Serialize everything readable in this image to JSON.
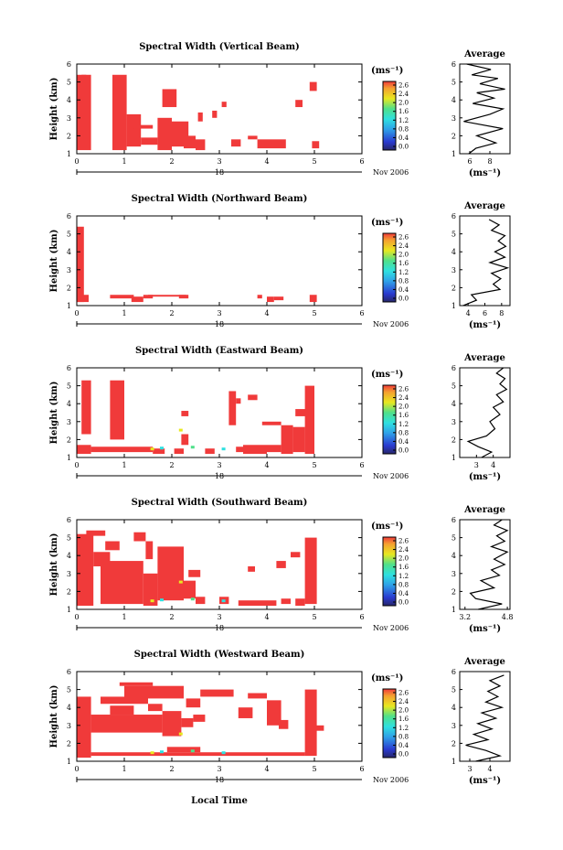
{
  "figure": {
    "colorbar_unit": "(ms⁻¹)",
    "avg_title": "Average",
    "avg_xlabel": "(ms⁻¹)",
    "ylabel": "Height (km)",
    "date_day": "18",
    "date_month": "Nov 2006",
    "xlabel": "Local Time",
    "colorbar_ticks": [
      "2.6",
      "2.4",
      "2.0",
      "1.6",
      "1.2",
      "0.8",
      "0.4",
      "0.0"
    ],
    "colors": {
      "red": "#f03a3a",
      "cyan": "#2fe0e0",
      "yellow": "#e8e820",
      "green": "#4fe08a",
      "blue": "#2a4fd0",
      "navy": "#27276a"
    }
  },
  "chart_data": [
    {
      "type": "heatmap",
      "title": "Spectral Width (Vertical Beam)",
      "xlabel": "",
      "ylabel": "Height (km)",
      "xlim": [
        0,
        6
      ],
      "ylim": [
        1,
        6
      ],
      "x_ticks": [
        "0",
        "1",
        "2",
        "3",
        "4",
        "5",
        "6"
      ],
      "y_ticks": [
        "1",
        "2",
        "3",
        "4",
        "5",
        "6"
      ],
      "colorbar_ticks": [
        "2.6",
        "2.4",
        "2.0",
        "1.6",
        "1.2",
        "0.8",
        "0.4",
        "0.0"
      ],
      "cells": [
        [
          0.0,
          0.3,
          1.2,
          5.4
        ],
        [
          0.75,
          1.05,
          1.2,
          5.4
        ],
        [
          1.05,
          1.35,
          1.4,
          3.2
        ],
        [
          1.35,
          1.7,
          1.5,
          1.9
        ],
        [
          1.7,
          2.0,
          1.2,
          3.0
        ],
        [
          1.8,
          2.1,
          3.6,
          4.6
        ],
        [
          2.0,
          2.35,
          1.4,
          2.8
        ],
        [
          2.25,
          2.5,
          1.3,
          2.0
        ],
        [
          2.5,
          2.7,
          1.2,
          1.8
        ],
        [
          2.55,
          2.65,
          2.8,
          3.3
        ],
        [
          2.85,
          2.95,
          3.0,
          3.4
        ],
        [
          3.05,
          3.15,
          3.6,
          3.9
        ],
        [
          3.25,
          3.45,
          1.4,
          1.8
        ],
        [
          3.8,
          4.4,
          1.3,
          1.8
        ],
        [
          3.6,
          3.8,
          1.8,
          2.0
        ],
        [
          4.95,
          5.1,
          1.3,
          1.7
        ],
        [
          4.6,
          4.75,
          3.6,
          4.0
        ],
        [
          4.9,
          5.05,
          4.5,
          5.0
        ],
        [
          0.1,
          0.2,
          5.0,
          5.4
        ],
        [
          1.2,
          1.6,
          2.4,
          2.6
        ]
      ],
      "avg": {
        "xlim": [
          5,
          10
        ],
        "x_ticks": [
          "6",
          "8"
        ],
        "ylim": [
          1,
          6
        ],
        "profile": [
          [
            5.9,
            1.0
          ],
          [
            6.6,
            1.3
          ],
          [
            8.6,
            1.6
          ],
          [
            6.7,
            2.0
          ],
          [
            9.3,
            2.4
          ],
          [
            5.4,
            2.8
          ],
          [
            8.0,
            3.2
          ],
          [
            9.3,
            3.5
          ],
          [
            6.3,
            3.8
          ],
          [
            8.4,
            4.1
          ],
          [
            6.7,
            4.4
          ],
          [
            9.5,
            4.6
          ],
          [
            7.0,
            4.9
          ],
          [
            8.8,
            5.2
          ],
          [
            6.2,
            5.4
          ],
          [
            8.1,
            5.7
          ],
          [
            5.7,
            6.0
          ]
        ]
      }
    },
    {
      "type": "heatmap",
      "title": "Spectral Width (Northward Beam)",
      "xlabel": "",
      "ylabel": "Height (km)",
      "xlim": [
        0,
        6
      ],
      "ylim": [
        1,
        6
      ],
      "x_ticks": [
        "0",
        "1",
        "2",
        "3",
        "4",
        "5",
        "6"
      ],
      "y_ticks": [
        "1",
        "2",
        "3",
        "4",
        "5",
        "6"
      ],
      "colorbar_ticks": [
        "2.6",
        "2.4",
        "2.0",
        "1.6",
        "1.2",
        "0.8",
        "0.4",
        "0.0"
      ],
      "cells": [
        [
          0.0,
          0.15,
          1.2,
          5.4
        ],
        [
          0.0,
          0.25,
          1.2,
          1.6
        ],
        [
          0.7,
          1.2,
          1.4,
          1.6
        ],
        [
          1.15,
          1.4,
          1.2,
          1.5
        ],
        [
          1.4,
          1.6,
          1.4,
          1.6
        ],
        [
          1.5,
          2.3,
          1.5,
          1.6
        ],
        [
          2.15,
          2.35,
          1.4,
          1.6
        ],
        [
          4.0,
          4.15,
          1.2,
          1.5
        ],
        [
          4.15,
          4.35,
          1.3,
          1.5
        ],
        [
          3.8,
          3.9,
          1.4,
          1.6
        ],
        [
          4.9,
          5.05,
          1.2,
          1.6
        ]
      ],
      "avg": {
        "xlim": [
          3,
          9
        ],
        "x_ticks": [
          "4",
          "6",
          "8"
        ],
        "ylim": [
          1,
          6
        ],
        "profile": [
          [
            3.4,
            1.0
          ],
          [
            5.0,
            1.3
          ],
          [
            4.4,
            1.6
          ],
          [
            7.8,
            1.9
          ],
          [
            7.0,
            2.2
          ],
          [
            7.9,
            2.5
          ],
          [
            6.8,
            2.8
          ],
          [
            8.7,
            3.1
          ],
          [
            6.6,
            3.4
          ],
          [
            8.4,
            3.7
          ],
          [
            7.2,
            4.0
          ],
          [
            8.5,
            4.3
          ],
          [
            7.6,
            4.6
          ],
          [
            8.4,
            4.9
          ],
          [
            6.8,
            5.2
          ],
          [
            7.7,
            5.5
          ],
          [
            6.5,
            5.8
          ]
        ]
      }
    },
    {
      "type": "heatmap",
      "title": "Spectral Width (Eastward Beam)",
      "xlabel": "",
      "ylabel": "Height (km)",
      "xlim": [
        0,
        6
      ],
      "ylim": [
        1,
        6
      ],
      "x_ticks": [
        "0",
        "1",
        "2",
        "3",
        "4",
        "5",
        "6"
      ],
      "y_ticks": [
        "1",
        "2",
        "3",
        "4",
        "5",
        "6"
      ],
      "colorbar_ticks": [
        "2.6",
        "2.4",
        "2.0",
        "1.6",
        "1.2",
        "0.8",
        "0.4",
        "0.0"
      ],
      "cells": [
        [
          0.0,
          0.3,
          1.2,
          1.7
        ],
        [
          0.1,
          0.3,
          2.3,
          5.3
        ],
        [
          0.7,
          1.0,
          2.0,
          5.3
        ],
        [
          0.3,
          1.6,
          1.3,
          1.6
        ],
        [
          1.6,
          1.85,
          1.2,
          1.5
        ],
        [
          2.05,
          2.25,
          1.2,
          1.5
        ],
        [
          2.2,
          2.35,
          1.7,
          2.3
        ],
        [
          2.2,
          2.35,
          3.3,
          3.6
        ],
        [
          2.7,
          2.9,
          1.2,
          1.5
        ],
        [
          3.2,
          3.35,
          2.8,
          4.7
        ],
        [
          3.35,
          3.45,
          4.0,
          4.3
        ],
        [
          3.35,
          3.5,
          1.3,
          1.6
        ],
        [
          3.5,
          4.0,
          1.2,
          1.7
        ],
        [
          3.9,
          4.3,
          2.8,
          3.0
        ],
        [
          4.0,
          4.3,
          1.3,
          1.7
        ],
        [
          4.3,
          4.55,
          1.2,
          2.8
        ],
        [
          4.55,
          4.8,
          1.3,
          2.7
        ],
        [
          4.8,
          5.0,
          1.2,
          5.0
        ],
        [
          4.6,
          5.0,
          3.3,
          3.7
        ],
        [
          3.6,
          3.8,
          4.2,
          4.5
        ]
      ],
      "avg": {
        "xlim": [
          2,
          5
        ],
        "x_ticks": [
          "3",
          "4"
        ],
        "ylim": [
          1,
          6
        ],
        "profile": [
          [
            3.3,
            1.0
          ],
          [
            3.9,
            1.3
          ],
          [
            3.1,
            1.6
          ],
          [
            2.5,
            1.9
          ],
          [
            3.6,
            2.2
          ],
          [
            4.1,
            2.6
          ],
          [
            3.8,
            3.0
          ],
          [
            4.4,
            3.4
          ],
          [
            4.0,
            3.8
          ],
          [
            4.6,
            4.1
          ],
          [
            4.2,
            4.5
          ],
          [
            4.8,
            4.8
          ],
          [
            4.4,
            5.1
          ],
          [
            4.7,
            5.4
          ],
          [
            4.2,
            5.7
          ],
          [
            4.6,
            6.0
          ]
        ]
      }
    },
    {
      "type": "heatmap",
      "title": "Spectral Width (Southward Beam)",
      "xlabel": "",
      "ylabel": "Height (km)",
      "xlim": [
        0,
        6
      ],
      "ylim": [
        1,
        6
      ],
      "x_ticks": [
        "0",
        "1",
        "2",
        "3",
        "4",
        "5",
        "6"
      ],
      "y_ticks": [
        "1",
        "2",
        "3",
        "4",
        "5",
        "6"
      ],
      "colorbar_ticks": [
        "2.6",
        "2.4",
        "2.0",
        "1.6",
        "1.2",
        "0.8",
        "0.4",
        "0.0"
      ],
      "cells": [
        [
          0.0,
          0.35,
          1.2,
          5.2
        ],
        [
          0.35,
          0.7,
          3.4,
          4.2
        ],
        [
          0.5,
          1.4,
          1.3,
          3.7
        ],
        [
          0.6,
          0.9,
          4.3,
          4.8
        ],
        [
          1.4,
          1.7,
          1.2,
          3.0
        ],
        [
          1.45,
          1.6,
          3.8,
          4.8
        ],
        [
          1.7,
          2.25,
          1.5,
          4.5
        ],
        [
          2.25,
          2.5,
          1.6,
          2.6
        ],
        [
          2.35,
          2.6,
          2.8,
          3.2
        ],
        [
          2.5,
          2.7,
          1.3,
          1.7
        ],
        [
          3.0,
          3.2,
          1.3,
          1.7
        ],
        [
          3.4,
          4.2,
          1.2,
          1.5
        ],
        [
          4.3,
          4.5,
          1.3,
          1.6
        ],
        [
          4.6,
          4.8,
          1.2,
          1.6
        ],
        [
          4.8,
          5.05,
          1.3,
          5.0
        ],
        [
          4.5,
          4.7,
          3.9,
          4.2
        ],
        [
          0.2,
          0.6,
          5.1,
          5.4
        ],
        [
          1.2,
          1.45,
          4.8,
          5.3
        ],
        [
          3.6,
          3.75,
          3.1,
          3.4
        ],
        [
          4.2,
          4.4,
          3.3,
          3.7
        ]
      ],
      "avg": {
        "xlim": [
          3.0,
          4.9
        ],
        "x_ticks": [
          "3.2",
          "4.8"
        ],
        "ylim": [
          1,
          6
        ],
        "profile": [
          [
            3.7,
            1.0
          ],
          [
            4.6,
            1.3
          ],
          [
            3.6,
            1.6
          ],
          [
            3.4,
            1.9
          ],
          [
            4.3,
            2.2
          ],
          [
            3.8,
            2.6
          ],
          [
            4.5,
            2.9
          ],
          [
            4.2,
            3.2
          ],
          [
            4.7,
            3.5
          ],
          [
            4.3,
            3.8
          ],
          [
            4.8,
            4.2
          ],
          [
            4.2,
            4.5
          ],
          [
            4.7,
            4.8
          ],
          [
            4.4,
            5.1
          ],
          [
            4.8,
            5.4
          ],
          [
            4.3,
            5.7
          ],
          [
            4.6,
            6.0
          ]
        ]
      }
    },
    {
      "type": "heatmap",
      "title": "Spectral Width (Westward Beam)",
      "xlabel": "Local Time",
      "ylabel": "Height (km)",
      "xlim": [
        0,
        6
      ],
      "ylim": [
        1,
        6
      ],
      "x_ticks": [
        "0",
        "1",
        "2",
        "3",
        "4",
        "5",
        "6"
      ],
      "y_ticks": [
        "1",
        "2",
        "3",
        "4",
        "5",
        "6"
      ],
      "colorbar_ticks": [
        "2.6",
        "2.4",
        "2.0",
        "1.6",
        "1.2",
        "0.8",
        "0.4",
        "0.0"
      ],
      "cells": [
        [
          0.0,
          0.3,
          1.2,
          4.6
        ],
        [
          0.3,
          1.8,
          2.6,
          3.6
        ],
        [
          0.5,
          1.5,
          4.2,
          4.6
        ],
        [
          0.7,
          1.2,
          3.6,
          4.1
        ],
        [
          1.0,
          2.25,
          4.5,
          5.2
        ],
        [
          1.5,
          1.8,
          3.8,
          4.2
        ],
        [
          1.8,
          2.2,
          2.4,
          3.8
        ],
        [
          2.2,
          2.45,
          2.9,
          3.4
        ],
        [
          2.3,
          2.6,
          4.0,
          4.5
        ],
        [
          2.45,
          2.7,
          3.2,
          3.6
        ],
        [
          3.4,
          3.7,
          3.4,
          4.0
        ],
        [
          3.6,
          4.0,
          4.5,
          4.8
        ],
        [
          4.0,
          4.3,
          3.0,
          4.4
        ],
        [
          4.25,
          4.45,
          2.8,
          3.3
        ],
        [
          4.8,
          5.05,
          1.3,
          5.0
        ],
        [
          0.3,
          4.8,
          1.3,
          1.5
        ],
        [
          2.6,
          3.3,
          4.6,
          5.0
        ],
        [
          0.9,
          1.6,
          5.2,
          5.4
        ],
        [
          1.9,
          2.6,
          1.5,
          1.8
        ],
        [
          5.0,
          5.2,
          2.7,
          3.0
        ]
      ],
      "avg": {
        "xlim": [
          2.5,
          5.0
        ],
        "x_ticks": [
          "3",
          "4"
        ],
        "ylim": [
          1,
          6
        ],
        "profile": [
          [
            3.3,
            1.0
          ],
          [
            4.5,
            1.3
          ],
          [
            3.8,
            1.6
          ],
          [
            2.8,
            1.9
          ],
          [
            3.9,
            2.2
          ],
          [
            3.2,
            2.5
          ],
          [
            4.1,
            2.8
          ],
          [
            3.4,
            3.1
          ],
          [
            4.3,
            3.4
          ],
          [
            3.6,
            3.7
          ],
          [
            4.6,
            4.0
          ],
          [
            3.8,
            4.3
          ],
          [
            4.4,
            4.6
          ],
          [
            3.9,
            4.9
          ],
          [
            4.5,
            5.2
          ],
          [
            4.0,
            5.5
          ],
          [
            4.7,
            5.8
          ]
        ]
      }
    }
  ]
}
